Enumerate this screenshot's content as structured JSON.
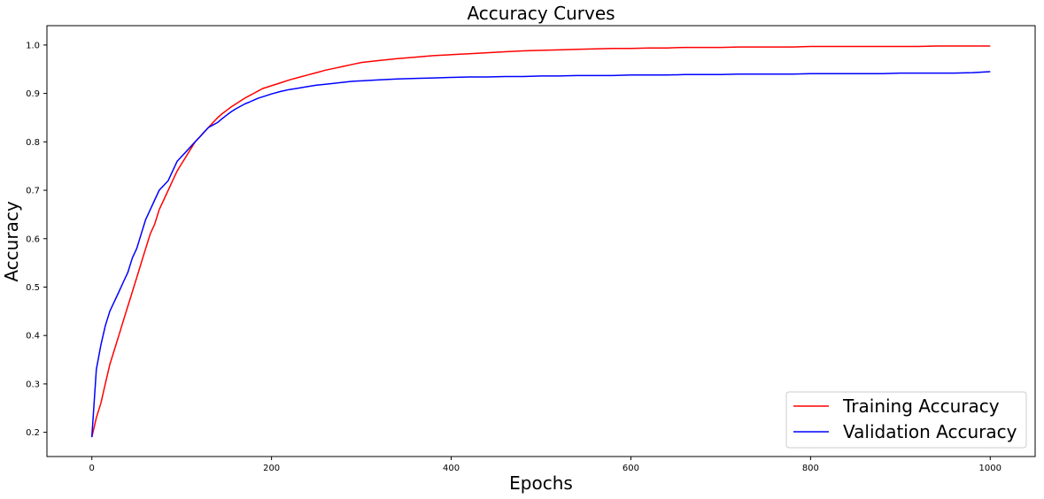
{
  "chart_data": {
    "type": "line",
    "title": "Accuracy Curves",
    "xlabel": "Epochs",
    "ylabel": "Accuracy",
    "xlim": [
      -50,
      1050
    ],
    "ylim": [
      0.15,
      1.04
    ],
    "x_ticks": [
      0,
      200,
      400,
      600,
      800,
      1000
    ],
    "y_ticks": [
      0.2,
      0.3,
      0.4,
      0.5,
      0.6,
      0.7,
      0.8,
      0.9,
      1.0
    ],
    "grid": false,
    "legend_position": "lower-right",
    "x": [
      0,
      5,
      10,
      15,
      20,
      25,
      30,
      35,
      40,
      45,
      50,
      55,
      60,
      65,
      70,
      75,
      80,
      85,
      90,
      95,
      100,
      105,
      110,
      115,
      120,
      125,
      130,
      135,
      140,
      145,
      150,
      155,
      160,
      165,
      170,
      175,
      180,
      185,
      190,
      195,
      200,
      210,
      220,
      230,
      240,
      250,
      260,
      270,
      280,
      290,
      300,
      320,
      340,
      360,
      380,
      400,
      420,
      440,
      460,
      480,
      500,
      520,
      540,
      560,
      580,
      600,
      620,
      640,
      660,
      680,
      700,
      720,
      740,
      760,
      780,
      800,
      820,
      840,
      860,
      880,
      900,
      920,
      940,
      960,
      980,
      1000
    ],
    "series": [
      {
        "name": "Training Accuracy",
        "color": "#ff0000",
        "values": [
          0.19,
          0.23,
          0.26,
          0.3,
          0.34,
          0.37,
          0.4,
          0.43,
          0.46,
          0.49,
          0.52,
          0.55,
          0.58,
          0.61,
          0.63,
          0.66,
          0.68,
          0.7,
          0.72,
          0.74,
          0.755,
          0.77,
          0.785,
          0.8,
          0.81,
          0.82,
          0.83,
          0.84,
          0.85,
          0.858,
          0.865,
          0.872,
          0.878,
          0.884,
          0.89,
          0.895,
          0.9,
          0.905,
          0.91,
          0.913,
          0.916,
          0.922,
          0.928,
          0.933,
          0.938,
          0.943,
          0.948,
          0.952,
          0.956,
          0.96,
          0.964,
          0.968,
          0.972,
          0.975,
          0.978,
          0.98,
          0.982,
          0.984,
          0.986,
          0.988,
          0.989,
          0.99,
          0.991,
          0.992,
          0.993,
          0.993,
          0.994,
          0.994,
          0.995,
          0.995,
          0.995,
          0.996,
          0.996,
          0.996,
          0.996,
          0.997,
          0.997,
          0.997,
          0.997,
          0.997,
          0.997,
          0.997,
          0.998,
          0.998,
          0.998,
          0.998
        ]
      },
      {
        "name": "Validation Accuracy",
        "color": "#0000ff",
        "values": [
          0.19,
          0.33,
          0.38,
          0.42,
          0.45,
          0.47,
          0.49,
          0.51,
          0.53,
          0.56,
          0.58,
          0.61,
          0.64,
          0.66,
          0.68,
          0.7,
          0.71,
          0.72,
          0.74,
          0.76,
          0.77,
          0.78,
          0.79,
          0.8,
          0.81,
          0.82,
          0.83,
          0.835,
          0.84,
          0.848,
          0.855,
          0.862,
          0.868,
          0.873,
          0.878,
          0.882,
          0.886,
          0.89,
          0.893,
          0.896,
          0.899,
          0.904,
          0.908,
          0.911,
          0.914,
          0.917,
          0.919,
          0.921,
          0.923,
          0.925,
          0.926,
          0.928,
          0.93,
          0.931,
          0.932,
          0.933,
          0.934,
          0.934,
          0.935,
          0.935,
          0.936,
          0.936,
          0.937,
          0.937,
          0.937,
          0.938,
          0.938,
          0.938,
          0.939,
          0.939,
          0.939,
          0.94,
          0.94,
          0.94,
          0.94,
          0.941,
          0.941,
          0.941,
          0.941,
          0.941,
          0.942,
          0.942,
          0.942,
          0.942,
          0.943,
          0.945
        ]
      }
    ]
  }
}
